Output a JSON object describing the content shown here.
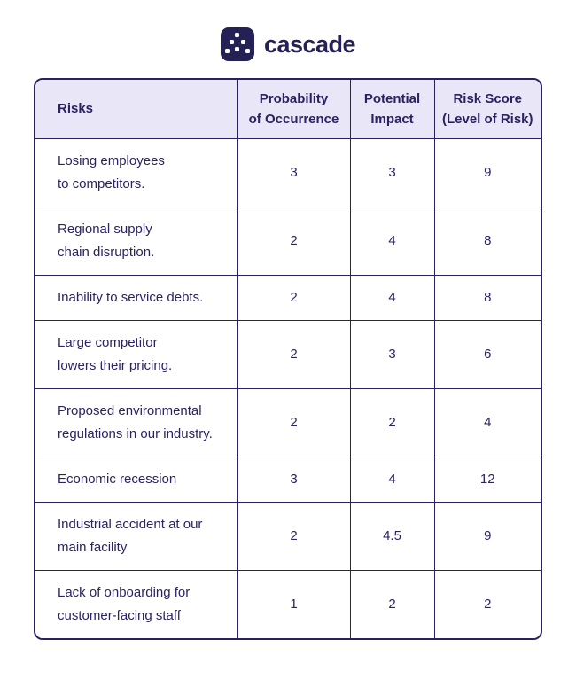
{
  "logo": {
    "text": "cascade",
    "icon": "cascade-dots-icon",
    "brand_color": "#252154"
  },
  "table": {
    "headers": [
      "Risks",
      "Probability\nof Occurrence",
      "Potential\nImpact",
      "Risk Score\n(Level of Risk)"
    ],
    "rows": [
      {
        "risk": "Losing employees\nto competitors.",
        "probability": "3",
        "impact": "3",
        "score": "9"
      },
      {
        "risk": "Regional supply\nchain disruption.",
        "probability": "2",
        "impact": "4",
        "score": "8"
      },
      {
        "risk": "Inability to service debts.",
        "probability": "2",
        "impact": "4",
        "score": "8"
      },
      {
        "risk": "Large competitor\nlowers their pricing.",
        "probability": "2",
        "impact": "3",
        "score": "6"
      },
      {
        "risk": "Proposed environmental\nregulations in our industry.",
        "probability": "2",
        "impact": "2",
        "score": "4"
      },
      {
        "risk": "Economic recession",
        "probability": "3",
        "impact": "4",
        "score": "12"
      },
      {
        "risk": "Industrial accident at our\nmain facility",
        "probability": "2",
        "impact": "4.5",
        "score": "9"
      },
      {
        "risk": "Lack of onboarding for\ncustomer-facing staff",
        "probability": "1",
        "impact": "2",
        "score": "2"
      }
    ],
    "colors": {
      "header_bg": "#E9E6F7",
      "border": "#2B2160",
      "text": "#2A2262",
      "cell_bg": "#FFFFFF"
    }
  }
}
